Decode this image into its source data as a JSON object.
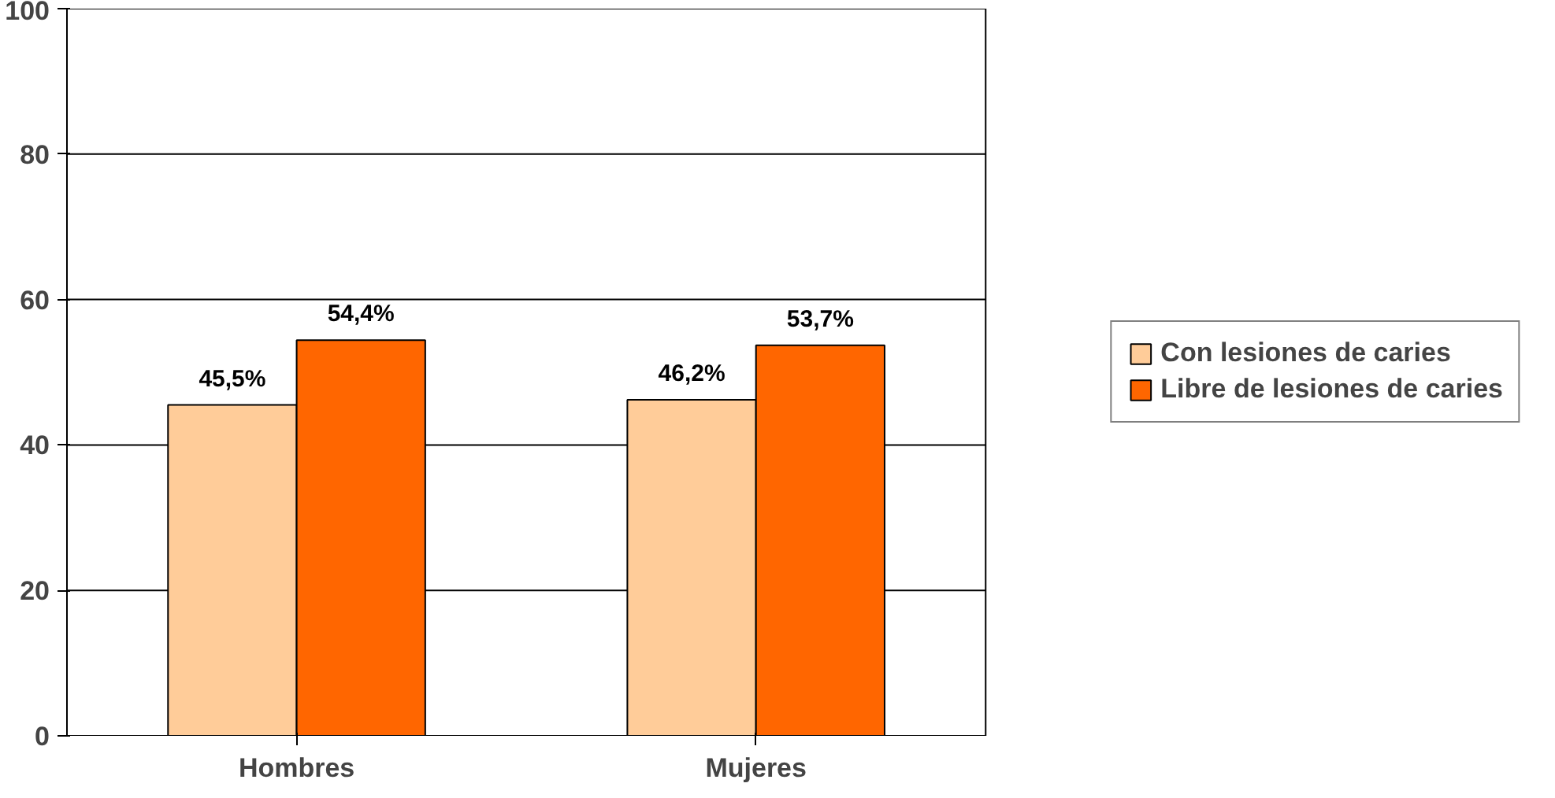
{
  "chart_data": {
    "type": "bar",
    "categories": [
      "Hombres",
      "Mujeres"
    ],
    "series": [
      {
        "name": "Con lesiones de caries",
        "color": "#ffcc99",
        "values": [
          45.5,
          46.2
        ],
        "value_labels": [
          "45,5%",
          "46,2%"
        ]
      },
      {
        "name": "Libre de lesiones de caries",
        "color": "#ff6600",
        "values": [
          54.4,
          53.7
        ],
        "value_labels": [
          "54,4%",
          "53,7%"
        ]
      }
    ],
    "ylim": [
      0,
      100
    ],
    "yticks": [
      0,
      20,
      40,
      60,
      80,
      100
    ],
    "grid": "y",
    "legend": "right"
  }
}
